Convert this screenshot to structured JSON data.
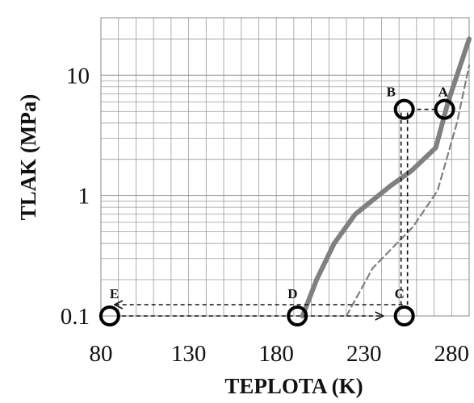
{
  "chart_data": {
    "type": "line",
    "title": "",
    "xlabel": "TEPLOTA (K)",
    "ylabel": "TLAK  (MPa)",
    "xlim": [
      80,
      290
    ],
    "ylim": [
      0.1,
      30
    ],
    "y_scale": "log",
    "grid": true,
    "x_ticks": [
      80,
      130,
      180,
      230,
      280
    ],
    "x_tick_labels": [
      "80",
      "130",
      "180",
      "230",
      "280"
    ],
    "y_ticks": [
      0.1,
      1,
      10
    ],
    "y_tick_labels": [
      "0.1",
      "1",
      "10"
    ],
    "series": [
      {
        "style": "solid",
        "color": "#808080",
        "points": [
          [
            195,
            0.1
          ],
          [
            203,
            0.2
          ],
          [
            213,
            0.4
          ],
          [
            225,
            0.7
          ],
          [
            245,
            1.2
          ],
          [
            257,
            1.6
          ],
          [
            271,
            2.5
          ],
          [
            278,
            6.0
          ],
          [
            290,
            20.0
          ]
        ]
      },
      {
        "style": "dashed",
        "color": "#808080",
        "points": [
          [
            220,
            0.1
          ],
          [
            235,
            0.25
          ],
          [
            258,
            0.55
          ],
          [
            272,
            1.1
          ],
          [
            283,
            4.0
          ],
          [
            290,
            12.0
          ]
        ]
      }
    ],
    "points": [
      {
        "label": "A",
        "x": 276,
        "y": 5.2
      },
      {
        "label": "B",
        "x": 253,
        "y": 5.2
      },
      {
        "label": "C",
        "x": 253,
        "y": 0.1
      },
      {
        "label": "D",
        "x": 192,
        "y": 0.1
      },
      {
        "label": "E",
        "x": 85,
        "y": 0.1
      }
    ],
    "process_lines": [
      {
        "style": "dashed",
        "from": "A",
        "to": "B",
        "arrow": false
      },
      {
        "style": "dashed",
        "from": "B",
        "to": "C",
        "arrow": false
      },
      {
        "style": "dashed",
        "from": "C",
        "to": "E",
        "arrow": true,
        "offset_up": true
      },
      {
        "style": "dashed",
        "from": "E",
        "to": "C",
        "arrow": true,
        "offset_up": false
      }
    ]
  }
}
